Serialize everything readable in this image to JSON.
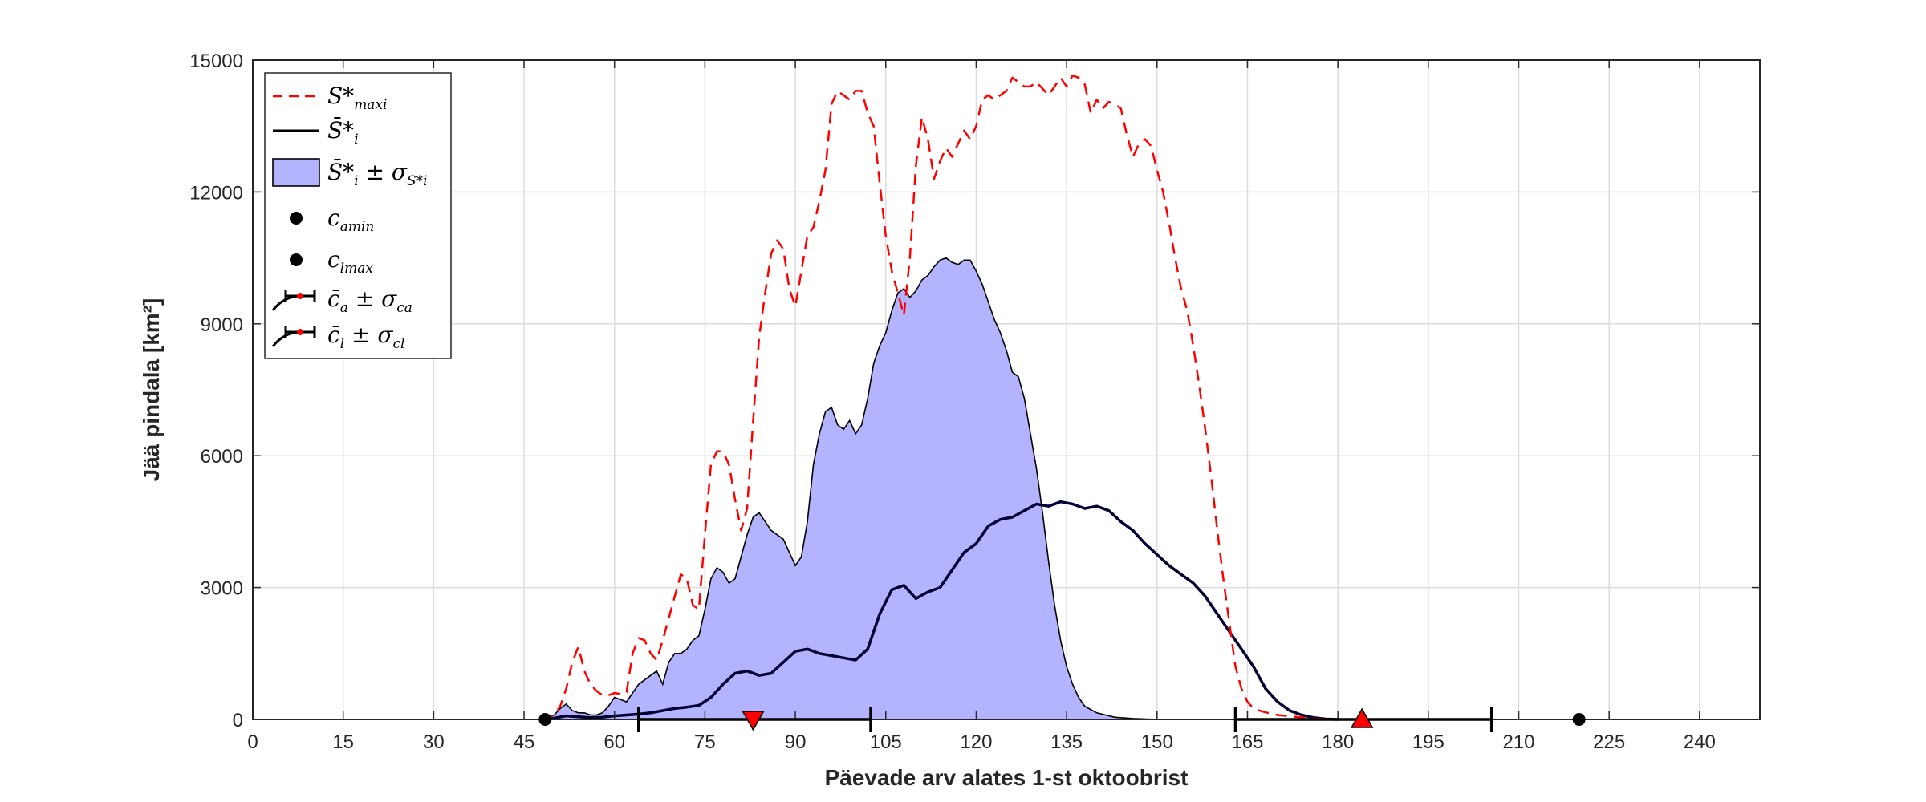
{
  "chart_data": {
    "type": "area",
    "xlabel": "Päevade arv alates 1-st oktoobrist",
    "ylabel": "Jää pindala [km²]",
    "xlim": [
      0,
      250
    ],
    "ylim": [
      0,
      15000
    ],
    "x_ticks": [
      0,
      15,
      30,
      45,
      60,
      75,
      90,
      105,
      120,
      135,
      150,
      165,
      180,
      195,
      210,
      225,
      240
    ],
    "y_ticks": [
      0,
      3000,
      6000,
      9000,
      12000,
      15000
    ],
    "grid": true,
    "legend_position": "top-left",
    "legend": [
      {
        "key": "s_max",
        "main": "S*",
        "sub": "maxi",
        "style": "red-dashed"
      },
      {
        "key": "s_mean",
        "main": "S̄*",
        "sub": "i",
        "style": "black-line"
      },
      {
        "key": "s_band",
        "main": "S̄*",
        "sub": "i",
        "tail": " ± σ",
        "tail_sub": "S*i",
        "style": "blue-fill"
      },
      {
        "key": "ca_min",
        "main": "c",
        "sub": "amin",
        "style": "black-dot"
      },
      {
        "key": "cl_max",
        "main": "c",
        "sub": "lmax",
        "style": "black-dot"
      },
      {
        "key": "ca_err",
        "main": "c̄",
        "sub": "a",
        "tail": " ± σ",
        "tail_sub": "ca",
        "style": "errorbar"
      },
      {
        "key": "cl_err",
        "main": "c̄",
        "sub": "l",
        "tail": " ± σ",
        "tail_sub": "cl",
        "style": "errorbar"
      }
    ],
    "series": [
      {
        "key": "s_max",
        "color": "#ff0000",
        "points": [
          [
            48,
            0
          ],
          [
            50,
            100
          ],
          [
            51,
            300
          ],
          [
            52,
            700
          ],
          [
            53,
            1300
          ],
          [
            54,
            1650
          ],
          [
            55,
            1100
          ],
          [
            56,
            800
          ],
          [
            57,
            650
          ],
          [
            58,
            550
          ],
          [
            59,
            550
          ],
          [
            60,
            600
          ],
          [
            61,
            580
          ],
          [
            62,
            620
          ],
          [
            63,
            1500
          ],
          [
            64,
            1850
          ],
          [
            65,
            1800
          ],
          [
            66,
            1500
          ],
          [
            67,
            1350
          ],
          [
            68,
            1800
          ],
          [
            69,
            2300
          ],
          [
            70,
            2800
          ],
          [
            71,
            3300
          ],
          [
            72,
            3200
          ],
          [
            73,
            2600
          ],
          [
            74,
            2500
          ],
          [
            75,
            4200
          ],
          [
            76,
            5800
          ],
          [
            77,
            6100
          ],
          [
            78,
            6100
          ],
          [
            79,
            5800
          ],
          [
            80,
            5000
          ],
          [
            81,
            4300
          ],
          [
            82,
            4800
          ],
          [
            83,
            6800
          ],
          [
            84,
            8700
          ],
          [
            85,
            9700
          ],
          [
            86,
            10600
          ],
          [
            87,
            10900
          ],
          [
            88,
            10700
          ],
          [
            89,
            9800
          ],
          [
            90,
            9400
          ],
          [
            91,
            10200
          ],
          [
            92,
            11000
          ],
          [
            93,
            11200
          ],
          [
            94,
            11800
          ],
          [
            95,
            12500
          ],
          [
            96,
            14000
          ],
          [
            97,
            14300
          ],
          [
            98,
            14200
          ],
          [
            99,
            14100
          ],
          [
            100,
            14300
          ],
          [
            101,
            14300
          ],
          [
            102,
            13800
          ],
          [
            103,
            13500
          ],
          [
            104,
            12200
          ],
          [
            105,
            11000
          ],
          [
            106,
            10200
          ],
          [
            107,
            9700
          ],
          [
            108,
            9200
          ],
          [
            109,
            10500
          ],
          [
            110,
            12600
          ],
          [
            111,
            13700
          ],
          [
            112,
            13200
          ],
          [
            113,
            12300
          ],
          [
            114,
            12700
          ],
          [
            115,
            13000
          ],
          [
            116,
            12800
          ],
          [
            117,
            13100
          ],
          [
            118,
            13400
          ],
          [
            119,
            13200
          ],
          [
            120,
            13500
          ],
          [
            121,
            14100
          ],
          [
            122,
            14200
          ],
          [
            123,
            14100
          ],
          [
            124,
            14200
          ],
          [
            125,
            14300
          ],
          [
            126,
            14600
          ],
          [
            127,
            14500
          ],
          [
            128,
            14400
          ],
          [
            129,
            14400
          ],
          [
            130,
            14500
          ],
          [
            131,
            14350
          ],
          [
            132,
            14200
          ],
          [
            133,
            14400
          ],
          [
            134,
            14600
          ],
          [
            135,
            14400
          ],
          [
            136,
            14650
          ],
          [
            137,
            14600
          ],
          [
            138,
            14450
          ],
          [
            139,
            13800
          ],
          [
            140,
            14100
          ],
          [
            141,
            13900
          ],
          [
            142,
            14050
          ],
          [
            143,
            14000
          ],
          [
            144,
            13900
          ],
          [
            145,
            13300
          ],
          [
            146,
            12800
          ],
          [
            147,
            13100
          ],
          [
            148,
            13200
          ],
          [
            149,
            13050
          ],
          [
            150,
            12500
          ],
          [
            151,
            12000
          ],
          [
            152,
            11300
          ],
          [
            153,
            10500
          ],
          [
            154,
            9800
          ],
          [
            155,
            9300
          ],
          [
            156,
            8500
          ],
          [
            157,
            7600
          ],
          [
            158,
            6600
          ],
          [
            159,
            5500
          ],
          [
            160,
            4300
          ],
          [
            161,
            3200
          ],
          [
            162,
            2200
          ],
          [
            163,
            1200
          ],
          [
            164,
            700
          ],
          [
            165,
            400
          ],
          [
            166,
            250
          ],
          [
            167,
            200
          ],
          [
            168,
            160
          ],
          [
            170,
            100
          ],
          [
            173,
            60
          ],
          [
            176,
            20
          ],
          [
            180,
            0
          ]
        ]
      },
      {
        "key": "s_band_upper",
        "color": "#000000",
        "fill": "#b3b3ff",
        "points": [
          [
            48,
            0
          ],
          [
            50,
            100
          ],
          [
            51,
            250
          ],
          [
            52,
            350
          ],
          [
            53,
            200
          ],
          [
            54,
            150
          ],
          [
            55,
            150
          ],
          [
            56,
            100
          ],
          [
            57,
            100
          ],
          [
            58,
            150
          ],
          [
            59,
            300
          ],
          [
            60,
            500
          ],
          [
            61,
            450
          ],
          [
            62,
            400
          ],
          [
            63,
            600
          ],
          [
            64,
            800
          ],
          [
            65,
            900
          ],
          [
            66,
            1000
          ],
          [
            67,
            1100
          ],
          [
            68,
            800
          ],
          [
            69,
            1300
          ],
          [
            70,
            1500
          ],
          [
            71,
            1500
          ],
          [
            72,
            1600
          ],
          [
            73,
            1800
          ],
          [
            74,
            1900
          ],
          [
            75,
            2500
          ],
          [
            76,
            3200
          ],
          [
            77,
            3450
          ],
          [
            78,
            3350
          ],
          [
            79,
            3100
          ],
          [
            80,
            3200
          ],
          [
            81,
            3700
          ],
          [
            82,
            4200
          ],
          [
            83,
            4600
          ],
          [
            84,
            4700
          ],
          [
            85,
            4500
          ],
          [
            86,
            4300
          ],
          [
            87,
            4200
          ],
          [
            88,
            4100
          ],
          [
            89,
            3800
          ],
          [
            90,
            3500
          ],
          [
            91,
            3700
          ],
          [
            92,
            4500
          ],
          [
            93,
            5800
          ],
          [
            94,
            6500
          ],
          [
            95,
            7000
          ],
          [
            96,
            7100
          ],
          [
            97,
            6700
          ],
          [
            98,
            6600
          ],
          [
            99,
            6800
          ],
          [
            100,
            6500
          ],
          [
            101,
            6700
          ],
          [
            102,
            7300
          ],
          [
            103,
            8100
          ],
          [
            104,
            8500
          ],
          [
            105,
            8800
          ],
          [
            106,
            9300
          ],
          [
            107,
            9700
          ],
          [
            108,
            9800
          ],
          [
            109,
            9600
          ],
          [
            110,
            9750
          ],
          [
            111,
            10000
          ],
          [
            112,
            10100
          ],
          [
            113,
            10300
          ],
          [
            114,
            10450
          ],
          [
            115,
            10500
          ],
          [
            116,
            10400
          ],
          [
            117,
            10350
          ],
          [
            118,
            10450
          ],
          [
            119,
            10450
          ],
          [
            120,
            10200
          ],
          [
            121,
            9900
          ],
          [
            122,
            9500
          ],
          [
            123,
            9100
          ],
          [
            124,
            8800
          ],
          [
            125,
            8400
          ],
          [
            126,
            7900
          ],
          [
            127,
            7800
          ],
          [
            128,
            7300
          ],
          [
            129,
            6500
          ],
          [
            130,
            5700
          ],
          [
            131,
            4700
          ],
          [
            132,
            3600
          ],
          [
            133,
            2600
          ],
          [
            134,
            1800
          ],
          [
            135,
            1200
          ],
          [
            136,
            800
          ],
          [
            137,
            500
          ],
          [
            138,
            300
          ],
          [
            140,
            150
          ],
          [
            143,
            50
          ],
          [
            146,
            20
          ],
          [
            150,
            0
          ]
        ]
      },
      {
        "key": "s_mean",
        "color": "#000033",
        "points": [
          [
            48,
            0
          ],
          [
            50,
            30
          ],
          [
            52,
            80
          ],
          [
            54,
            60
          ],
          [
            56,
            40
          ],
          [
            58,
            50
          ],
          [
            60,
            80
          ],
          [
            62,
            100
          ],
          [
            64,
            120
          ],
          [
            66,
            150
          ],
          [
            68,
            200
          ],
          [
            70,
            250
          ],
          [
            72,
            280
          ],
          [
            74,
            320
          ],
          [
            76,
            500
          ],
          [
            78,
            800
          ],
          [
            80,
            1050
          ],
          [
            82,
            1100
          ],
          [
            84,
            1000
          ],
          [
            86,
            1050
          ],
          [
            88,
            1300
          ],
          [
            90,
            1550
          ],
          [
            92,
            1600
          ],
          [
            94,
            1500
          ],
          [
            96,
            1450
          ],
          [
            98,
            1400
          ],
          [
            100,
            1350
          ],
          [
            102,
            1600
          ],
          [
            104,
            2400
          ],
          [
            106,
            2950
          ],
          [
            108,
            3050
          ],
          [
            110,
            2750
          ],
          [
            112,
            2900
          ],
          [
            114,
            3000
          ],
          [
            116,
            3400
          ],
          [
            118,
            3800
          ],
          [
            120,
            4000
          ],
          [
            122,
            4400
          ],
          [
            124,
            4550
          ],
          [
            126,
            4600
          ],
          [
            128,
            4750
          ],
          [
            130,
            4900
          ],
          [
            132,
            4850
          ],
          [
            134,
            4950
          ],
          [
            136,
            4900
          ],
          [
            138,
            4800
          ],
          [
            140,
            4850
          ],
          [
            142,
            4750
          ],
          [
            144,
            4500
          ],
          [
            146,
            4300
          ],
          [
            148,
            4000
          ],
          [
            150,
            3750
          ],
          [
            152,
            3500
          ],
          [
            154,
            3300
          ],
          [
            156,
            3100
          ],
          [
            158,
            2800
          ],
          [
            160,
            2400
          ],
          [
            162,
            2000
          ],
          [
            164,
            1600
          ],
          [
            166,
            1200
          ],
          [
            168,
            700
          ],
          [
            170,
            400
          ],
          [
            172,
            200
          ],
          [
            174,
            100
          ],
          [
            176,
            40
          ],
          [
            178,
            10
          ],
          [
            180,
            0
          ]
        ]
      }
    ],
    "markers": [
      {
        "key": "ca_min",
        "x": 48.5,
        "y": 0,
        "shape": "circle",
        "color": "#000000"
      },
      {
        "key": "cl_max",
        "x": 220,
        "y": 0,
        "shape": "circle",
        "color": "#000000"
      },
      {
        "key": "ca_mean",
        "x": 83,
        "y": 0,
        "shape": "triangle-down",
        "color": "#ff0000"
      },
      {
        "key": "cl_mean",
        "x": 184,
        "y": 0,
        "shape": "triangle-up",
        "color": "#ff0000"
      }
    ],
    "error_bars": [
      {
        "key": "ca_err",
        "center": 83,
        "low": 64,
        "high": 102.5,
        "y": 0
      },
      {
        "key": "cl_err",
        "center": 184,
        "low": 163,
        "high": 205.5,
        "y": 0
      }
    ]
  }
}
